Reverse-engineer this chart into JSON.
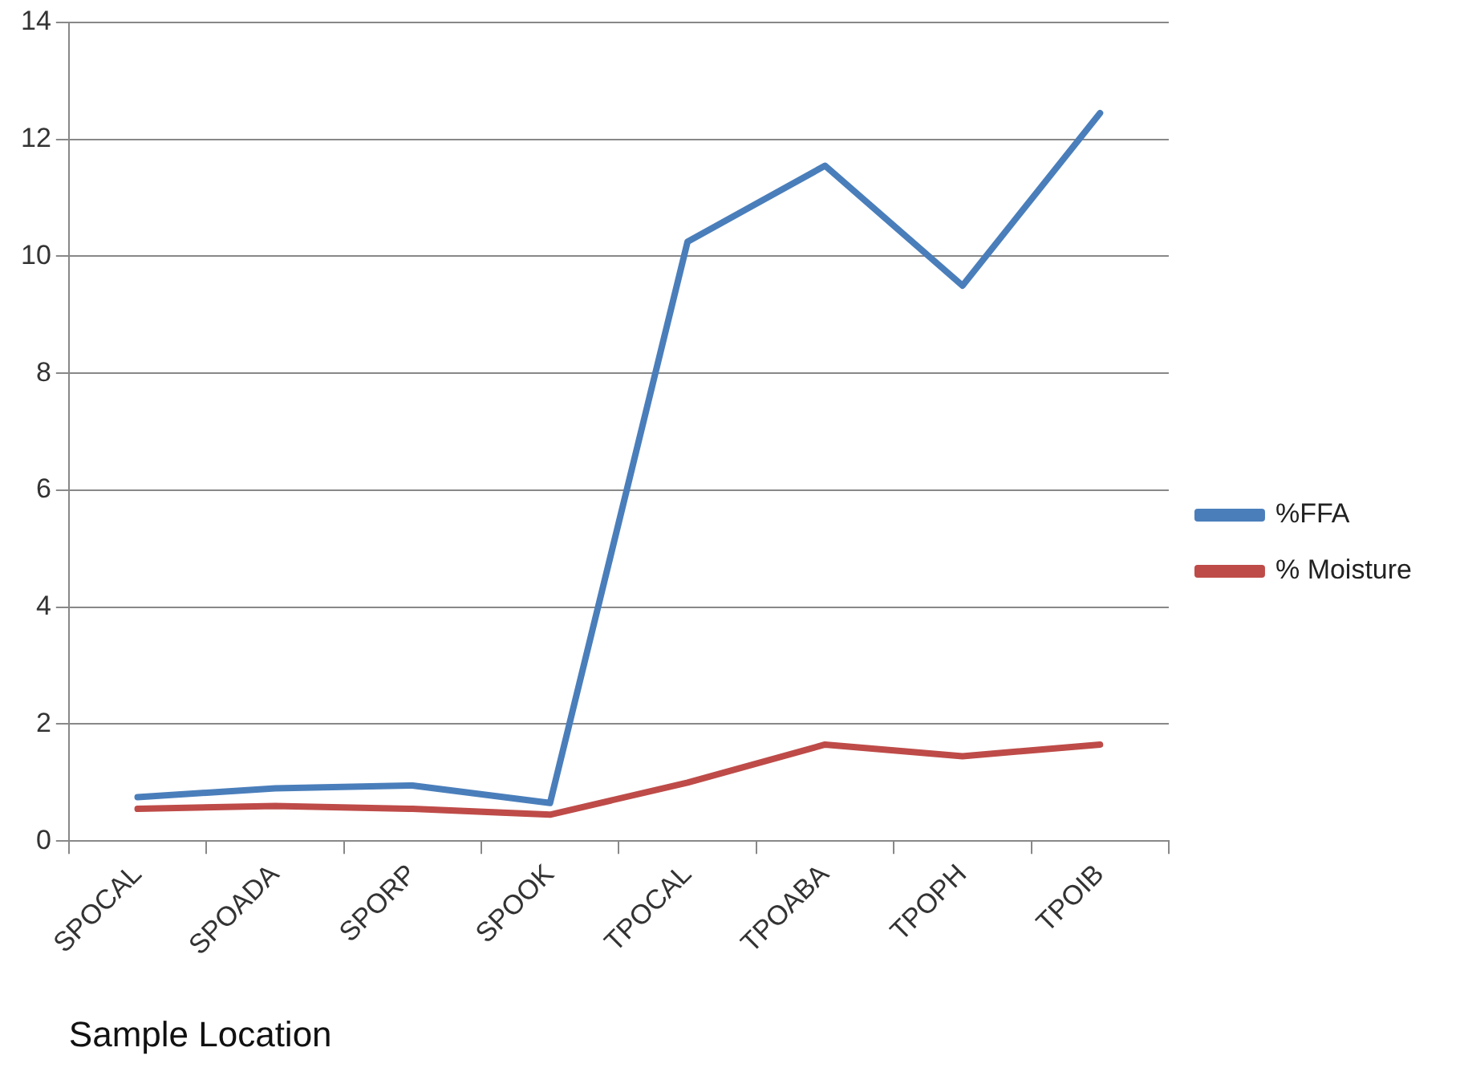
{
  "chart_data": {
    "type": "line",
    "xlabel": "Sample Location",
    "categories": [
      "SPOCAL",
      "SPOADA",
      "SPORP",
      "SPOOK",
      "TPOCAL",
      "TPOABA",
      "TPOPH",
      "TPOIB"
    ],
    "series": [
      {
        "name": "%FFA",
        "color": "#4a7ebb",
        "values": [
          0.75,
          0.9,
          0.95,
          0.65,
          10.25,
          11.55,
          9.5,
          12.45
        ]
      },
      {
        "name": "% Moisture",
        "color": "#be4b48",
        "values": [
          0.55,
          0.6,
          0.55,
          0.45,
          1.0,
          1.65,
          1.45,
          1.65
        ]
      }
    ],
    "ylim": [
      0,
      14
    ],
    "yticks": [
      0,
      2,
      4,
      6,
      8,
      10,
      12,
      14
    ],
    "grid": "y",
    "legend": "right",
    "marker": "none",
    "line_style": "solid"
  }
}
